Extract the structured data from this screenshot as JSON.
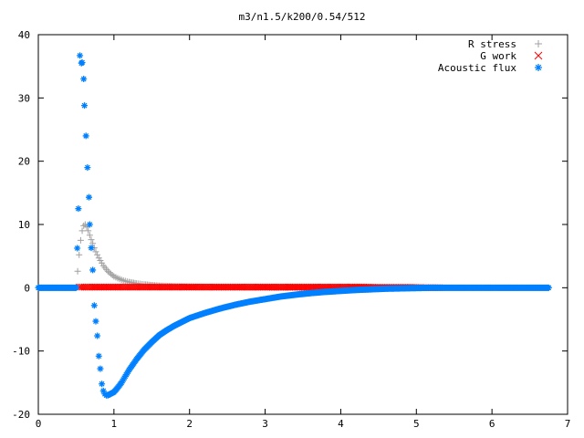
{
  "chart_data": {
    "type": "scatter",
    "title": "m3/n1.5/k200/0.54/512",
    "xlabel": "",
    "ylabel": "",
    "xlim": [
      0,
      7
    ],
    "ylim": [
      -20,
      40
    ],
    "x_ticks": [
      0,
      1,
      2,
      3,
      4,
      5,
      6,
      7
    ],
    "y_ticks": [
      -20,
      -10,
      0,
      10,
      20,
      30,
      40
    ],
    "grid": false,
    "legend": "top-right",
    "series": [
      {
        "name": "R stress",
        "marker": "+",
        "color": "#a0a0a0",
        "x": [
          0.0,
          0.25,
          0.5,
          0.54,
          0.56,
          0.58,
          0.6,
          0.62,
          0.64,
          0.66,
          0.68,
          0.7,
          0.72,
          0.74,
          0.76,
          0.78,
          0.8,
          0.82,
          0.84,
          0.86,
          0.88,
          0.9,
          0.92,
          0.94,
          0.96,
          0.98,
          1.0,
          1.05,
          1.1,
          1.15,
          1.2,
          1.3,
          1.4,
          1.5,
          1.6,
          1.8,
          2.0,
          2.3,
          2.6,
          3.0,
          3.5,
          4.0,
          5.0,
          6.0,
          6.75
        ],
        "y": [
          0,
          0,
          0,
          5.2,
          7.5,
          9.0,
          9.8,
          10.0,
          9.6,
          9.0,
          8.3,
          7.6,
          7.0,
          6.3,
          5.7,
          5.2,
          4.7,
          4.3,
          3.9,
          3.5,
          3.2,
          2.9,
          2.6,
          2.4,
          2.2,
          2.0,
          1.8,
          1.5,
          1.25,
          1.05,
          0.9,
          0.68,
          0.52,
          0.4,
          0.32,
          0.22,
          0.16,
          0.1,
          0.07,
          0.04,
          0.02,
          0.01,
          0,
          0,
          0
        ]
      },
      {
        "name": "G work",
        "marker": "x",
        "color": "#ff0000",
        "x": [
          0.54,
          0.7,
          0.9,
          1.1,
          1.3,
          1.5,
          1.7,
          1.9,
          2.1,
          2.3,
          2.5,
          2.7,
          2.9,
          3.1,
          3.3,
          3.5,
          3.7,
          3.9,
          4.1,
          4.3,
          4.5,
          4.7,
          4.9,
          5.1,
          5.3
        ],
        "y": [
          0.1,
          0.1,
          0.1,
          0.1,
          0.1,
          0.1,
          0.1,
          0.1,
          0.1,
          0.1,
          0.1,
          0.1,
          0.1,
          0.1,
          0.1,
          0.1,
          0.1,
          0.1,
          0.1,
          0.1,
          0.05,
          0.05,
          0.05,
          0,
          0
        ]
      },
      {
        "name": "Acoustic flux",
        "marker": "*",
        "color": "#0080ff",
        "x": [
          0.0,
          0.1,
          0.2,
          0.3,
          0.4,
          0.5,
          0.53,
          0.55,
          0.57,
          0.58,
          0.6,
          0.61,
          0.63,
          0.65,
          0.67,
          0.68,
          0.7,
          0.72,
          0.74,
          0.76,
          0.78,
          0.8,
          0.82,
          0.84,
          0.86,
          0.88,
          0.9,
          0.92,
          0.95,
          1.0,
          1.05,
          1.1,
          1.15,
          1.2,
          1.3,
          1.4,
          1.5,
          1.6,
          1.7,
          1.8,
          1.9,
          2.0,
          2.2,
          2.4,
          2.6,
          2.8,
          3.0,
          3.2,
          3.4,
          3.6,
          3.8,
          4.0,
          4.2,
          4.4,
          4.6,
          4.8,
          5.0,
          5.2,
          5.5,
          5.8,
          6.1,
          6.4,
          6.75
        ],
        "y": [
          0,
          0,
          0,
          0,
          0,
          0,
          12.5,
          36.7,
          35.5,
          35.6,
          33.0,
          28.8,
          24.0,
          19.0,
          14.3,
          10.0,
          6.3,
          2.8,
          -2.8,
          -5.3,
          -7.6,
          -10.8,
          -12.8,
          -15.2,
          -16.3,
          -16.8,
          -17.0,
          -17.0,
          -16.8,
          -16.5,
          -15.8,
          -15.0,
          -14.0,
          -13.0,
          -11.3,
          -9.8,
          -8.6,
          -7.5,
          -6.7,
          -6.0,
          -5.4,
          -4.8,
          -4.0,
          -3.3,
          -2.7,
          -2.2,
          -1.8,
          -1.4,
          -1.1,
          -0.85,
          -0.65,
          -0.5,
          -0.35,
          -0.25,
          -0.15,
          -0.1,
          -0.05,
          0,
          0,
          0,
          0,
          0,
          0
        ]
      }
    ]
  }
}
